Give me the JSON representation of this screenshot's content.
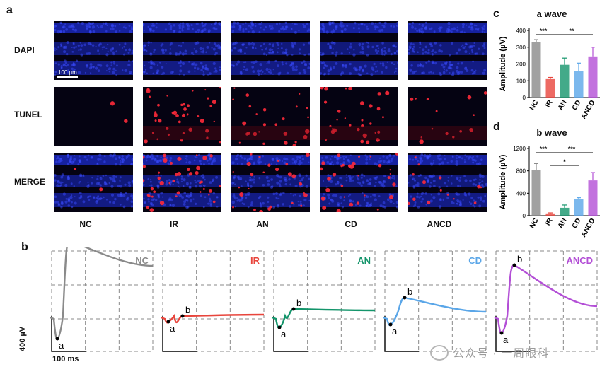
{
  "panels": {
    "a": "a",
    "b": "b",
    "c": "c",
    "d": "d"
  },
  "microscopy": {
    "row_labels": [
      "DAPI",
      "TUNEL",
      "MERGE"
    ],
    "col_labels": [
      "NC",
      "IR",
      "AN",
      "CD",
      "ANCD"
    ],
    "scale_bar": "100 µm"
  },
  "erg": {
    "groups": [
      {
        "name": "NC",
        "color": "#8a8a8a"
      },
      {
        "name": "IR",
        "color": "#e8453c"
      },
      {
        "name": "AN",
        "color": "#14956b"
      },
      {
        "name": "CD",
        "color": "#5aa6e8"
      },
      {
        "name": "ANCD",
        "color": "#b34fd6"
      }
    ],
    "wave_a": "a",
    "wave_b": "b",
    "scale_y": "400 µV",
    "scale_x": "100 ms"
  },
  "watermark": "公众号 · 一周眼科",
  "chart_data": [
    {
      "type": "bar",
      "title": "a wave",
      "ylabel": "Amplitude (µV)",
      "categories": [
        "NC",
        "IR",
        "AN",
        "CD",
        "ANCD"
      ],
      "values": [
        330,
        110,
        195,
        160,
        245
      ],
      "errors": [
        15,
        10,
        40,
        45,
        55
      ],
      "colors": [
        "#8a8a8a",
        "#e8453c",
        "#14956b",
        "#5aa6e8",
        "#b34fd6"
      ],
      "ylim": [
        0,
        400
      ],
      "yticks": [
        0,
        100,
        200,
        300,
        400
      ],
      "significance": [
        {
          "label": "***",
          "from": "NC",
          "to": "IR"
        },
        {
          "label": "**",
          "from": "IR",
          "to": "ANCD"
        }
      ]
    },
    {
      "type": "bar",
      "title": "b wave",
      "ylabel": "Amplitude (µV)",
      "categories": [
        "NC",
        "IR",
        "AN",
        "CD",
        "ANCD"
      ],
      "values": [
        820,
        40,
        140,
        300,
        630
      ],
      "errors": [
        110,
        10,
        50,
        20,
        140
      ],
      "colors": [
        "#8a8a8a",
        "#e8453c",
        "#14956b",
        "#5aa6e8",
        "#b34fd6"
      ],
      "ylim": [
        0,
        1200
      ],
      "yticks": [
        0,
        400,
        800,
        1200
      ],
      "significance": [
        {
          "label": "***",
          "from": "NC",
          "to": "IR"
        },
        {
          "label": "***",
          "from": "IR",
          "to": "ANCD"
        },
        {
          "label": "*",
          "from": "IR",
          "to": "CD"
        }
      ]
    }
  ]
}
